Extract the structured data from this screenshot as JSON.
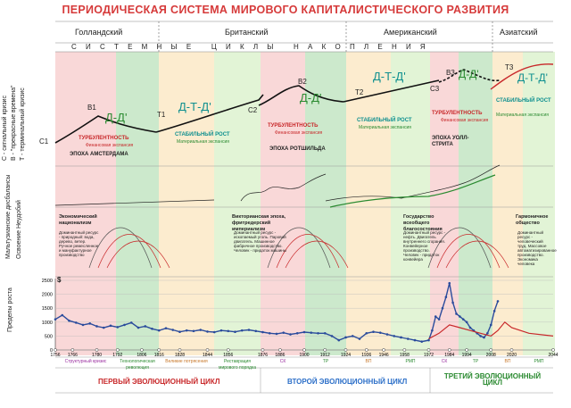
{
  "title": "ПЕРИОДИЧЕСКАЯ СИСТЕМА МИРОВОГО КАПИТАЛИСТИЧЕСКОГО РАЗВИТИЯ",
  "hegemons": [
    "Голландский",
    "Британский",
    "Американский",
    "Азиатский"
  ],
  "cycles_band": "С И С Т Е М Н Ы Е   Ц И К Л Ы   Н А К О П Л Е Н И Я",
  "side_labels": {
    "top": [
      "С - сигнальный кризис",
      "B - \"прекрасные времена\"",
      "T - терминальный кризис"
    ],
    "middle": [
      "Мальтузианские дисбалансы",
      "Освоение Неудобий"
    ],
    "bottom": "Пределы роста"
  },
  "formula": "Д-Т-Д'",
  "short_formula": "Д-Д'",
  "phases": {
    "turbulence": "ТУРБУЛЕНТНОСТЬ",
    "financial": "Финансовая экспансия",
    "stable": "СТАБИЛЬНЫЙ РОСТ",
    "material": "Материальная экспансия"
  },
  "epochs": [
    "ЭПОХА АМСТЕРДАМА",
    "ЭПОХА РОТШИЛЬДА",
    "ЭПОХА УОЛЛ-СТРИТА"
  ],
  "points": {
    "c1": "C1",
    "b1": "B1",
    "t1": "T1",
    "c2": "C2",
    "b2": "B2",
    "t2": "T2",
    "c3": "C3",
    "b3": "B3",
    "t3": "T3"
  },
  "mid_blocks": [
    {
      "title": "Экономический национализм",
      "text": "Доминантный ресурс - природный: вода, дерево, ветер. Ручное ремесленное и мануфактурное производство"
    },
    {
      "title": "Викторианская эпоха, фритредерский империализм",
      "text": "Доминантный ресурс - ископаемый уголь. Паровой двигатель. Машинное фабричное производство. Человек - придаток машины"
    },
    {
      "title": "Государство всеобщего благосостояния",
      "text": "Доминантный ресурс - нефть. Двигатель внутреннего сгорания. Конвейерное производство. Человек - придаток конвейера"
    },
    {
      "title": "Гармоничное общество",
      "text": "Доминантный ресурс - человеческий труд. Массовое автоматизированное производство. Экономика человека"
    }
  ],
  "bottom_axis": {
    "y_ticks": [
      "2500",
      "2000",
      "1500",
      "1000",
      "500",
      "0"
    ],
    "x_ticks": [
      "1756",
      "1766",
      "1780",
      "1792",
      "1806",
      "1816",
      "1828",
      "1844",
      "1856",
      "1876",
      "1886",
      "1900",
      "1912",
      "1924",
      "1936",
      "1946",
      "1958",
      "1972",
      "1984",
      "1994",
      "2008",
      "2020",
      "2044"
    ],
    "dollar": "$"
  },
  "phase_row": [
    "Структурный кризис",
    "Технологическая революция",
    "Великие потрясения",
    "Реставрация мирового порядка",
    "СК",
    "ТР",
    "ВП",
    "РМП",
    "СК",
    "ТР",
    "ВП",
    "РМП"
  ],
  "eco_cycles": [
    "ПЕРВЫЙ ЭВОЛЮЦИОННЫЙ ЦИКЛ",
    "ВТОРОЙ ЭВОЛЮЦИОННЫЙ ЦИКЛ",
    "ТРЕТИЙ ЭВОЛЮЦИОННЫЙ ЦИКЛ"
  ],
  "chart_data": {
    "type": "line",
    "x_range": [
      1756,
      2044
    ],
    "ylim": [
      0,
      2500
    ],
    "series": [
      {
        "values_x": [
          1756,
          1760,
          1764,
          1768,
          1772,
          1776,
          1780,
          1784,
          1788,
          1792,
          1796,
          1800,
          1804,
          1808,
          1812,
          1816,
          1820,
          1824,
          1828,
          1832,
          1836,
          1840,
          1844,
          1848,
          1852,
          1856,
          1860,
          1864,
          1868,
          1872,
          1876,
          1880,
          1884,
          1888,
          1892,
          1896,
          1900,
          1904,
          1908,
          1912,
          1916,
          1920,
          1924,
          1928,
          1932,
          1936,
          1940,
          1944,
          1948,
          1952,
          1956,
          1960,
          1964,
          1968,
          1972,
          1974,
          1976,
          1978,
          1980,
          1982,
          1984,
          1986,
          1988,
          1990,
          1992,
          1994,
          1996,
          1998,
          2000,
          2002,
          2004,
          2006,
          2008,
          2010,
          2012
        ],
        "values_y": [
          1100,
          1250,
          1050,
          980,
          900,
          950,
          850,
          800,
          870,
          820,
          900,
          980,
          800,
          850,
          760,
          700,
          780,
          720,
          650,
          700,
          680,
          720,
          660,
          640,
          700,
          680,
          650,
          700,
          720,
          680,
          640,
          600,
          580,
          620,
          560,
          600,
          640,
          620,
          600,
          600,
          500,
          350,
          450,
          500,
          400,
          600,
          650,
          620,
          560,
          500,
          450,
          400,
          350,
          300,
          350,
          700,
          1200,
          1100,
          1500,
          1900,
          2400,
          1700,
          1300,
          1200,
          1100,
          1000,
          800,
          700,
          600,
          500,
          450,
          600,
          900,
          1400,
          1750
        ]
      },
      {
        "values_x": [
          1972,
          1978,
          1984,
          1990,
          1996,
          2002,
          2008,
          2012,
          2016,
          2020,
          2030,
          2044
        ],
        "values_y": [
          400,
          600,
          900,
          800,
          700,
          600,
          500,
          700,
          1000,
          800,
          600,
          500
        ]
      }
    ]
  },
  "colors": {
    "pink": "#f7c8c8",
    "green": "#bfe3bf",
    "yellow": "#fbe6bf",
    "lightgreen": "#d8f0c8",
    "red": "#d63a3a",
    "teal": "#0e8f8f",
    "blue": "#2a4b9c"
  }
}
